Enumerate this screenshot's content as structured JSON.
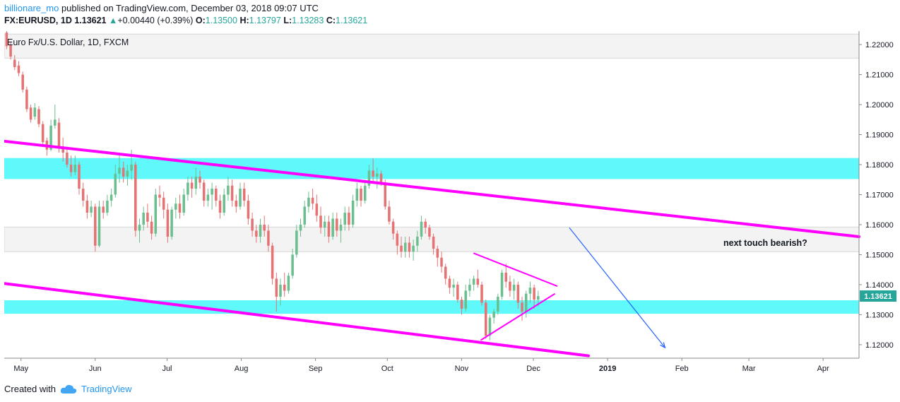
{
  "header": {
    "author": "billionare_mo",
    "published_text": "published on TradingView.com, December 03, 2018 09:07 UTC",
    "symbol": "FX:EURUSD, 1D",
    "last": "1.13621",
    "change_arrow": "▲",
    "change": "+0.00440 (+0.39%)",
    "o_label": "O:",
    "o": "1.13500",
    "h_label": "H:",
    "h": "1.13797",
    "l_label": "L:",
    "l": "1.13283",
    "c_label": "C:",
    "c": "1.13621"
  },
  "footer": {
    "created_with": "Created with",
    "brand": "TradingView"
  },
  "colors": {
    "up": "#26a69a",
    "down": "#ef5350",
    "up_candle": "#6bbf8e",
    "down_candle": "#e57373",
    "channel": "#ff00ff",
    "zone": "#00ffff",
    "grey_zone": "#e8e8e8",
    "arrow": "#2962ff",
    "price_label": "#26a69a"
  },
  "chart_data": {
    "type": "candlestick",
    "title": "Euro Fx/U.S. Dollar, 1D, FXCM",
    "x_tick_labels": [
      "May",
      "Jun",
      "Jul",
      "Aug",
      "Sep",
      "Oct",
      "Nov",
      "Dec",
      "2019",
      "Feb",
      "Mar",
      "Apr"
    ],
    "x_tick_dates": [
      "2018-05-01",
      "2018-06-01",
      "2018-07-01",
      "2018-08-01",
      "2018-09-01",
      "2018-10-01",
      "2018-11-01",
      "2018-12-01",
      "2019-01-01",
      "2019-02-01",
      "2019-03-01",
      "2019-04-01"
    ],
    "y_ticks": [
      "1.22000",
      "1.21000",
      "1.20000",
      "1.19000",
      "1.18000",
      "1.17000",
      "1.16000",
      "1.15000",
      "1.14000",
      "1.13000",
      "1.12000"
    ],
    "ylim": [
      1.1155,
      1.2245
    ],
    "x_range": [
      "2018-04-24",
      "2019-04-16"
    ],
    "last_price_label": "1.13621",
    "annotation": "next touch bearish?",
    "zones": [
      {
        "color": "grey",
        "from": 1.2155,
        "to": 1.2235
      },
      {
        "color": "cyan",
        "from": 1.1752,
        "to": 1.1822
      },
      {
        "color": "grey",
        "from": 1.151,
        "to": 1.1592
      },
      {
        "color": "cyan",
        "from": 1.1303,
        "to": 1.1348
      }
    ],
    "channel_lines": [
      {
        "from": [
          "2018-04-24",
          1.1878
        ],
        "to": [
          "2019-04-16",
          1.156
        ]
      },
      {
        "from": [
          "2018-04-24",
          1.1404
        ],
        "to": [
          "2018-12-24",
          1.1163
        ]
      }
    ],
    "triangle": [
      {
        "from": [
          "2018-11-06",
          1.1505
        ],
        "to": [
          "2018-12-11",
          1.1395
        ]
      },
      {
        "from": [
          "2018-11-09",
          1.1215
        ],
        "to": [
          "2018-12-10",
          1.137
        ]
      }
    ],
    "projection_arrow": {
      "from": [
        "2018-12-16",
        1.159
      ],
      "to": [
        "2019-01-25",
        1.119
      ]
    },
    "candles_ohlc": [
      [
        1.224,
        1.225,
        1.2185,
        1.2195
      ],
      [
        1.22,
        1.221,
        1.215,
        1.216
      ],
      [
        1.215,
        1.2165,
        1.2115,
        1.2125
      ],
      [
        1.213,
        1.2145,
        1.2095,
        1.2105
      ],
      [
        1.21,
        1.211,
        1.204,
        1.205
      ],
      [
        1.205,
        1.206,
        1.1975,
        1.1985
      ],
      [
        1.199,
        1.2,
        1.194,
        1.195
      ],
      [
        1.196,
        1.2005,
        1.195,
        1.199
      ],
      [
        1.1985,
        1.1995,
        1.1925,
        1.1935
      ],
      [
        1.1935,
        1.1945,
        1.186,
        1.1875
      ],
      [
        1.188,
        1.189,
        1.183,
        1.185
      ],
      [
        1.185,
        1.195,
        1.1845,
        1.193
      ],
      [
        1.193,
        1.2,
        1.192,
        1.195
      ],
      [
        1.194,
        1.1955,
        1.184,
        1.186
      ],
      [
        1.186,
        1.189,
        1.181,
        1.184
      ],
      [
        1.184,
        1.185,
        1.179,
        1.18
      ],
      [
        1.18,
        1.183,
        1.176,
        1.1775
      ],
      [
        1.1775,
        1.183,
        1.1765,
        1.18
      ],
      [
        1.18,
        1.181,
        1.17,
        1.172
      ],
      [
        1.172,
        1.174,
        1.166,
        1.168
      ],
      [
        1.168,
        1.17,
        1.162,
        1.164
      ],
      [
        1.164,
        1.168,
        1.1625,
        1.166
      ],
      [
        1.166,
        1.167,
        1.151,
        1.153
      ],
      [
        1.153,
        1.168,
        1.1525,
        1.166
      ],
      [
        1.166,
        1.168,
        1.162,
        1.164
      ],
      [
        1.164,
        1.17,
        1.163,
        1.168
      ],
      [
        1.168,
        1.172,
        1.166,
        1.17
      ],
      [
        1.17,
        1.18,
        1.169,
        1.177
      ],
      [
        1.177,
        1.184,
        1.174,
        1.179
      ],
      [
        1.179,
        1.181,
        1.174,
        1.176
      ],
      [
        1.176,
        1.18,
        1.173,
        1.178
      ],
      [
        1.178,
        1.185,
        1.175,
        1.18
      ],
      [
        1.18,
        1.181,
        1.156,
        1.158
      ],
      [
        1.158,
        1.162,
        1.154,
        1.16
      ],
      [
        1.16,
        1.166,
        1.158,
        1.164
      ],
      [
        1.164,
        1.167,
        1.159,
        1.161
      ],
      [
        1.161,
        1.163,
        1.155,
        1.157
      ],
      [
        1.157,
        1.172,
        1.156,
        1.17
      ],
      [
        1.17,
        1.173,
        1.166,
        1.169
      ],
      [
        1.169,
        1.171,
        1.162,
        1.165
      ],
      [
        1.165,
        1.167,
        1.154,
        1.156
      ],
      [
        1.156,
        1.166,
        1.155,
        1.165
      ],
      [
        1.165,
        1.169,
        1.162,
        1.167
      ],
      [
        1.167,
        1.17,
        1.162,
        1.164
      ],
      [
        1.164,
        1.172,
        1.163,
        1.17
      ],
      [
        1.17,
        1.176,
        1.168,
        1.174
      ],
      [
        1.174,
        1.176,
        1.169,
        1.172
      ],
      [
        1.172,
        1.179,
        1.17,
        1.176
      ],
      [
        1.176,
        1.178,
        1.172,
        1.174
      ],
      [
        1.174,
        1.175,
        1.166,
        1.168
      ],
      [
        1.168,
        1.172,
        1.166,
        1.17
      ],
      [
        1.17,
        1.174,
        1.165,
        1.172
      ],
      [
        1.172,
        1.173,
        1.166,
        1.168
      ],
      [
        1.168,
        1.17,
        1.162,
        1.164
      ],
      [
        1.164,
        1.172,
        1.163,
        1.17
      ],
      [
        1.17,
        1.176,
        1.168,
        1.173
      ],
      [
        1.173,
        1.175,
        1.166,
        1.168
      ],
      [
        1.168,
        1.17,
        1.164,
        1.166
      ],
      [
        1.166,
        1.174,
        1.165,
        1.172
      ],
      [
        1.172,
        1.174,
        1.166,
        1.168
      ],
      [
        1.168,
        1.17,
        1.16,
        1.162
      ],
      [
        1.162,
        1.164,
        1.156,
        1.158
      ],
      [
        1.158,
        1.16,
        1.154,
        1.156
      ],
      [
        1.156,
        1.162,
        1.154,
        1.16
      ],
      [
        1.16,
        1.163,
        1.156,
        1.158
      ],
      [
        1.158,
        1.16,
        1.151,
        1.153
      ],
      [
        1.153,
        1.154,
        1.14,
        1.142
      ],
      [
        1.142,
        1.144,
        1.131,
        1.136
      ],
      [
        1.136,
        1.142,
        1.133,
        1.14
      ],
      [
        1.14,
        1.144,
        1.136,
        1.138
      ],
      [
        1.138,
        1.144,
        1.137,
        1.143
      ],
      [
        1.143,
        1.152,
        1.142,
        1.15
      ],
      [
        1.15,
        1.16,
        1.149,
        1.158
      ],
      [
        1.158,
        1.162,
        1.156,
        1.16
      ],
      [
        1.16,
        1.168,
        1.159,
        1.166
      ],
      [
        1.166,
        1.171,
        1.164,
        1.169
      ],
      [
        1.169,
        1.172,
        1.165,
        1.167
      ],
      [
        1.167,
        1.17,
        1.161,
        1.163
      ],
      [
        1.163,
        1.166,
        1.157,
        1.159
      ],
      [
        1.159,
        1.163,
        1.156,
        1.161
      ],
      [
        1.161,
        1.163,
        1.154,
        1.156
      ],
      [
        1.156,
        1.164,
        1.155,
        1.162
      ],
      [
        1.162,
        1.164,
        1.156,
        1.158
      ],
      [
        1.158,
        1.162,
        1.154,
        1.16
      ],
      [
        1.16,
        1.166,
        1.158,
        1.164
      ],
      [
        1.164,
        1.166,
        1.158,
        1.16
      ],
      [
        1.16,
        1.17,
        1.159,
        1.168
      ],
      [
        1.168,
        1.174,
        1.166,
        1.172
      ],
      [
        1.172,
        1.173,
        1.166,
        1.168
      ],
      [
        1.168,
        1.175,
        1.167,
        1.173
      ],
      [
        1.173,
        1.18,
        1.172,
        1.178
      ],
      [
        1.178,
        1.182,
        1.174,
        1.176
      ],
      [
        1.176,
        1.179,
        1.172,
        1.177
      ],
      [
        1.177,
        1.178,
        1.173,
        1.174
      ],
      [
        1.174,
        1.175,
        1.165,
        1.166
      ],
      [
        1.166,
        1.168,
        1.16,
        1.161
      ],
      [
        1.161,
        1.162,
        1.155,
        1.157
      ],
      [
        1.157,
        1.158,
        1.15,
        1.153
      ],
      [
        1.153,
        1.156,
        1.149,
        1.151
      ],
      [
        1.151,
        1.156,
        1.149,
        1.154
      ],
      [
        1.154,
        1.156,
        1.149,
        1.151
      ],
      [
        1.151,
        1.155,
        1.148,
        1.153
      ],
      [
        1.153,
        1.158,
        1.151,
        1.156
      ],
      [
        1.156,
        1.163,
        1.155,
        1.161
      ],
      [
        1.161,
        1.162,
        1.157,
        1.159
      ],
      [
        1.159,
        1.16,
        1.155,
        1.156
      ],
      [
        1.156,
        1.157,
        1.15,
        1.152
      ],
      [
        1.152,
        1.153,
        1.146,
        1.149
      ],
      [
        1.149,
        1.151,
        1.144,
        1.146
      ],
      [
        1.146,
        1.147,
        1.14,
        1.142
      ],
      [
        1.142,
        1.143,
        1.137,
        1.139
      ],
      [
        1.139,
        1.142,
        1.136,
        1.14
      ],
      [
        1.14,
        1.141,
        1.134,
        1.135
      ],
      [
        1.135,
        1.136,
        1.13,
        1.132
      ],
      [
        1.132,
        1.14,
        1.131,
        1.138
      ],
      [
        1.138,
        1.142,
        1.136,
        1.14
      ],
      [
        1.14,
        1.143,
        1.138,
        1.142
      ],
      [
        1.142,
        1.145,
        1.139,
        1.14
      ],
      [
        1.14,
        1.141,
        1.133,
        1.134
      ],
      [
        1.134,
        1.135,
        1.122,
        1.123
      ],
      [
        1.123,
        1.13,
        1.1215,
        1.129
      ],
      [
        1.129,
        1.132,
        1.127,
        1.131
      ],
      [
        1.131,
        1.137,
        1.13,
        1.136
      ],
      [
        1.136,
        1.145,
        1.135,
        1.144
      ],
      [
        1.144,
        1.147,
        1.139,
        1.141
      ],
      [
        1.141,
        1.143,
        1.136,
        1.138
      ],
      [
        1.138,
        1.142,
        1.135,
        1.14
      ],
      [
        1.14,
        1.141,
        1.132,
        1.134
      ],
      [
        1.134,
        1.136,
        1.128,
        1.131
      ],
      [
        1.131,
        1.138,
        1.129,
        1.137
      ],
      [
        1.137,
        1.141,
        1.134,
        1.139
      ],
      [
        1.139,
        1.14,
        1.132,
        1.135
      ],
      [
        1.135,
        1.138,
        1.1328,
        1.1362
      ]
    ],
    "candle_x_range": [
      "2018-04-25",
      "2018-12-03"
    ]
  }
}
